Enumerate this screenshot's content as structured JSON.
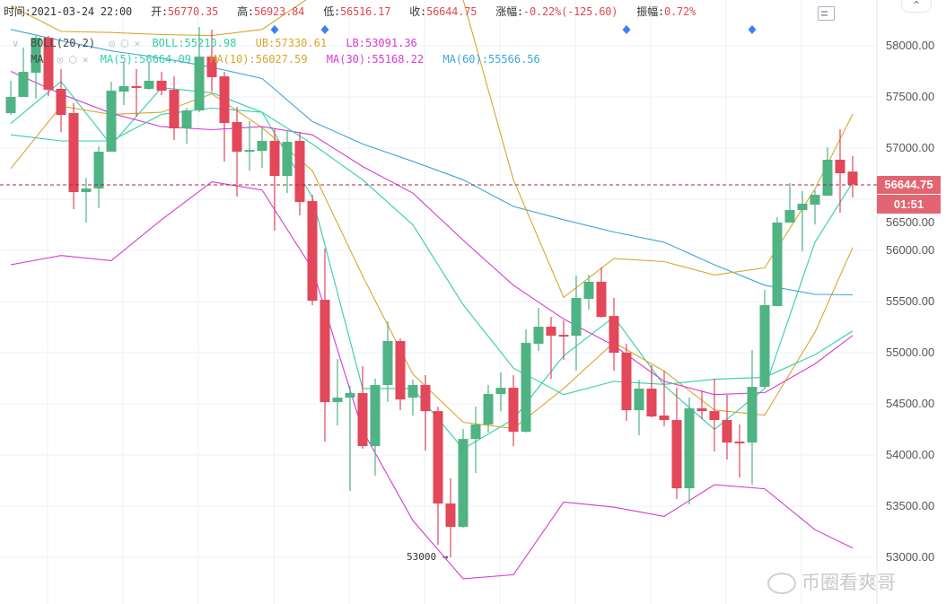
{
  "header": {
    "time_label": "时间:",
    "time": "2021-03-24 22:00",
    "open_label": "开:",
    "open": "56770.35",
    "high_label": "高:",
    "high": "56923.84",
    "low_label": "低:",
    "low": "56516.17",
    "close_label": "收:",
    "close": "56644.75",
    "change_label": "涨幅:",
    "change": "-0.22%(-125.60)",
    "amplitude_label": "振幅:",
    "amplitude": "0.72%"
  },
  "boll_legend": {
    "name": "BOLL(20,2)",
    "mid": "BOLL:55210.98",
    "ub": "UB:57330.61",
    "lb": "LB:53091.36",
    "chevron_icon": "chevron-down-icon"
  },
  "ma_legend": {
    "name": "MA",
    "ma5": "MA(5):56664.09",
    "ma10": "MA(10):56027.59",
    "ma30": "MA(30):55168.22",
    "ma60": "MA(60):55566.56"
  },
  "axis": {
    "labels": [
      "58000.00",
      "57500.00",
      "57000.00",
      "56500.00",
      "56000.00",
      "55500.00",
      "55000.00",
      "54500.00",
      "54000.00",
      "53500.00",
      "53000.00"
    ]
  },
  "current_price": {
    "value": "56644.75",
    "countdown": "01:51"
  },
  "low_marker": "53000 →",
  "watermark": "币圈看爽哥",
  "colors": {
    "up": "#4fb383",
    "down": "#e2475a",
    "ma5": "#2fcfa8",
    "ma10": "#d9a62e",
    "ma30": "#d63ad3",
    "ma60": "#3ea5d9",
    "boll": "#2fcfa8",
    "ub": "#d9a62e",
    "lb": "#d63ad3",
    "marker": "#3b82f0"
  },
  "chart_data": {
    "type": "candlestick",
    "ylim": [
      52700,
      58450
    ],
    "candles_ohlc": [
      [
        57342,
        57658,
        57324,
        57500
      ],
      [
        57500,
        57982,
        57500,
        57745
      ],
      [
        57736,
        58096,
        57482,
        58079
      ],
      [
        58079,
        58096,
        57508,
        57570
      ],
      [
        57579,
        57772,
        57158,
        57324
      ],
      [
        57342,
        57438,
        56403,
        56570
      ],
      [
        56570,
        56710,
        56272,
        56605
      ],
      [
        56605,
        57017,
        56412,
        56965
      ],
      [
        56965,
        57649,
        56965,
        57561
      ],
      [
        57552,
        57833,
        57421,
        57605
      ],
      [
        57605,
        57772,
        57307,
        57587
      ],
      [
        57579,
        57833,
        57570,
        57658
      ],
      [
        57658,
        57745,
        57517,
        57561
      ],
      [
        57570,
        57701,
        57079,
        57193
      ],
      [
        57193,
        57394,
        57043,
        57368
      ],
      [
        57368,
        58184,
        57350,
        57894
      ],
      [
        57894,
        58158,
        57552,
        57693
      ],
      [
        57701,
        57745,
        56868,
        57245
      ],
      [
        57254,
        57403,
        56526,
        56965
      ],
      [
        56965,
        57263,
        56780,
        56982
      ],
      [
        56973,
        57201,
        56807,
        57070
      ],
      [
        57070,
        57193,
        56193,
        56728
      ],
      [
        56728,
        57175,
        56561,
        57061
      ],
      [
        57070,
        57158,
        56342,
        56473
      ],
      [
        56482,
        56543,
        55465,
        55508
      ],
      [
        55517,
        56017,
        54131,
        54517
      ],
      [
        54517,
        54938,
        54289,
        54561
      ],
      [
        54561,
        54675,
        53649,
        54605
      ],
      [
        54605,
        54868,
        54061,
        54087
      ],
      [
        54087,
        54745,
        53798,
        54684
      ],
      [
        54684,
        55307,
        54517,
        55114
      ],
      [
        55114,
        55140,
        54438,
        54543
      ],
      [
        54561,
        54736,
        54386,
        54684
      ],
      [
        54684,
        54780,
        54043,
        54429
      ],
      [
        54429,
        54473,
        53122,
        53526
      ],
      [
        53526,
        53772,
        53000,
        53298
      ],
      [
        53298,
        54254,
        53290,
        54157
      ],
      [
        54157,
        54473,
        53824,
        54298
      ],
      [
        54298,
        54684,
        54219,
        54596
      ],
      [
        54596,
        54807,
        54429,
        54657
      ],
      [
        54657,
        54780,
        54087,
        54228
      ],
      [
        54228,
        55228,
        54220,
        55096
      ],
      [
        55087,
        55438,
        55017,
        55254
      ],
      [
        55254,
        55350,
        54745,
        55166
      ],
      [
        55175,
        55315,
        54929,
        55166
      ],
      [
        55166,
        55754,
        54824,
        55535
      ],
      [
        55526,
        55763,
        55421,
        55693
      ],
      [
        55693,
        55833,
        55342,
        55351
      ],
      [
        55359,
        55535,
        54824,
        55000
      ],
      [
        55000,
        55087,
        54333,
        54438
      ],
      [
        54438,
        54736,
        54193,
        54649
      ],
      [
        54649,
        54877,
        54368,
        54377
      ],
      [
        54386,
        54824,
        54280,
        54342
      ],
      [
        54342,
        54658,
        53570,
        53675
      ],
      [
        53675,
        54561,
        53517,
        54456
      ],
      [
        54456,
        54631,
        54350,
        54429
      ],
      [
        54429,
        54745,
        54035,
        54342
      ],
      [
        54342,
        54587,
        53956,
        54122
      ],
      [
        54131,
        54298,
        53780,
        54122
      ],
      [
        54122,
        55026,
        53710,
        54666
      ],
      [
        54666,
        55614,
        54649,
        55465
      ],
      [
        55456,
        56324,
        55456,
        56272
      ],
      [
        56272,
        56658,
        56272,
        56394
      ],
      [
        56394,
        56579,
        55991,
        56456
      ],
      [
        56447,
        56587,
        56254,
        56543
      ],
      [
        56535,
        57008,
        56535,
        56886
      ],
      [
        56886,
        57184,
        56368,
        56754
      ],
      [
        56770.35,
        56923.84,
        56516.17,
        56644.75
      ]
    ],
    "line_sample_index": [
      0,
      4,
      8,
      12,
      16,
      20,
      24,
      28,
      32,
      36,
      40,
      44,
      48,
      52,
      56,
      60,
      64,
      67
    ],
    "lines": {
      "ma5": [
        57240,
        57650,
        57030,
        57590,
        57540,
        57350,
        56520,
        54650,
        54650,
        54060,
        54350,
        54970,
        55350,
        54680,
        54250,
        54650,
        56080,
        56664
      ],
      "ma10": [
        56800,
        57410,
        57330,
        57350,
        57530,
        57200,
        56780,
        55750,
        54790,
        54320,
        54260,
        54650,
        55100,
        54820,
        54440,
        54390,
        55200,
        56028
      ],
      "ma30": [
        57750,
        57530,
        57340,
        57210,
        57180,
        57210,
        57130,
        56820,
        56560,
        56100,
        55660,
        55330,
        55070,
        54720,
        54590,
        54610,
        54890,
        55168
      ],
      "ma60": [
        58160,
        58050,
        57950,
        57880,
        57790,
        57680,
        57260,
        57040,
        56870,
        56690,
        56430,
        56300,
        56180,
        56080,
        55860,
        55660,
        55570,
        55566
      ],
      "boll": [
        57130,
        57070,
        57070,
        57330,
        57390,
        57350,
        57040,
        56690,
        56250,
        55470,
        54850,
        54590,
        54720,
        54690,
        54740,
        54760,
        54980,
        55211
      ],
      "ub": [
        58390,
        58140,
        58130,
        58110,
        58100,
        58160,
        58490,
        58970,
        58970,
        58450,
        56690,
        55540,
        55920,
        55890,
        55760,
        55830,
        56600,
        57331
      ],
      "lb": [
        55860,
        55950,
        55900,
        56300,
        56670,
        56590,
        55820,
        54240,
        53360,
        52790,
        52830,
        53540,
        53490,
        53400,
        53710,
        53670,
        53270,
        53091
      ]
    },
    "event_marker_index": [
      21,
      25,
      49,
      59
    ]
  }
}
